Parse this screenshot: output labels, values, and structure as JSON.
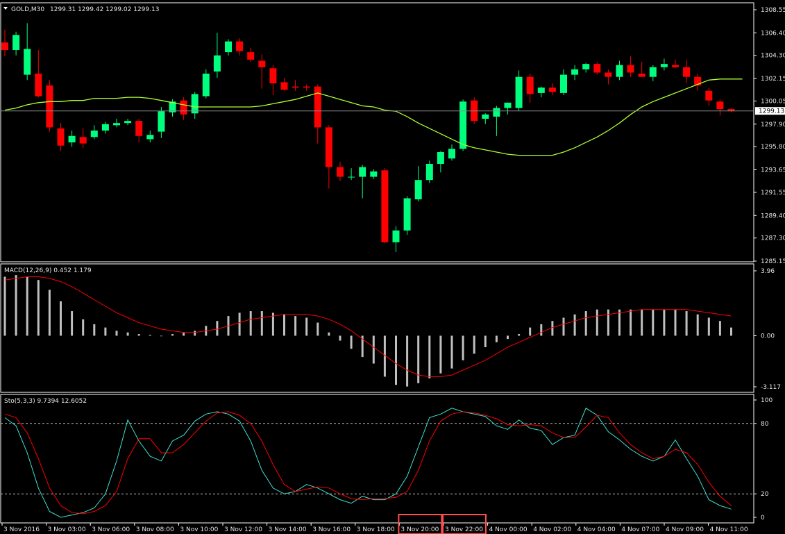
{
  "main_info": {
    "symbol": "GOLD,M30",
    "ohlc_text": "1299.31 1299.42 1299.02 1299.13",
    "current_price_tag": "1299.13"
  },
  "macd_info": {
    "label": "MACD(12,26,9) 0.452 1.179"
  },
  "stoch_info": {
    "label": "Sto(5,3,3) 9.7394 12.6052"
  },
  "colors": {
    "background": "#000000",
    "bull": "#00ff7f",
    "bear": "#ff0000",
    "ma": "#adff2f",
    "histogram": "#c0c0c0",
    "signal": "#ff0000",
    "stoch_main": "#40e0d0",
    "stoch_signal": "#ff0000",
    "highlight": "#ff4d4d",
    "axis": "#ffffff"
  },
  "chart_data": [
    {
      "type": "candlestick",
      "title": "GOLD,M30",
      "ylim": [
        1285.15,
        1308.55
      ],
      "y_ticks": [
        "1308.55",
        "1306.40",
        "1304.30",
        "1302.15",
        "1300.05",
        "1297.90",
        "1295.80",
        "1293.65",
        "1291.55",
        "1289.40",
        "1287.30",
        "1285.15"
      ],
      "current_price": 1299.13,
      "candles": [
        {
          "o": 1305.5,
          "h": 1306.7,
          "l": 1304.2,
          "c": 1304.8
        },
        {
          "o": 1304.8,
          "h": 1306.5,
          "l": 1304.3,
          "c": 1306.2
        },
        {
          "o": 1302.5,
          "h": 1307.3,
          "l": 1302.0,
          "c": 1304.9
        },
        {
          "o": 1302.6,
          "h": 1304.8,
          "l": 1300.4,
          "c": 1300.5
        },
        {
          "o": 1301.5,
          "h": 1302.0,
          "l": 1297.2,
          "c": 1297.6
        },
        {
          "o": 1297.5,
          "h": 1298.0,
          "l": 1295.4,
          "c": 1295.9
        },
        {
          "o": 1296.2,
          "h": 1297.3,
          "l": 1295.8,
          "c": 1296.8
        },
        {
          "o": 1296.7,
          "h": 1297.5,
          "l": 1295.7,
          "c": 1296.1
        },
        {
          "o": 1296.7,
          "h": 1297.8,
          "l": 1296.5,
          "c": 1297.3
        },
        {
          "o": 1297.3,
          "h": 1298.1,
          "l": 1297.0,
          "c": 1297.9
        },
        {
          "o": 1297.8,
          "h": 1298.4,
          "l": 1297.6,
          "c": 1298.0
        },
        {
          "o": 1298.0,
          "h": 1298.4,
          "l": 1297.8,
          "c": 1298.2
        },
        {
          "o": 1298.2,
          "h": 1298.4,
          "l": 1296.2,
          "c": 1296.8
        },
        {
          "o": 1296.5,
          "h": 1297.3,
          "l": 1296.2,
          "c": 1296.9
        },
        {
          "o": 1297.2,
          "h": 1299.5,
          "l": 1296.6,
          "c": 1299.1
        },
        {
          "o": 1299.0,
          "h": 1300.2,
          "l": 1298.6,
          "c": 1300.0
        },
        {
          "o": 1300.1,
          "h": 1300.4,
          "l": 1298.3,
          "c": 1298.8
        },
        {
          "o": 1298.9,
          "h": 1300.9,
          "l": 1298.4,
          "c": 1300.7
        },
        {
          "o": 1300.5,
          "h": 1303.0,
          "l": 1300.3,
          "c": 1302.6
        },
        {
          "o": 1302.8,
          "h": 1306.4,
          "l": 1302.2,
          "c": 1304.3
        },
        {
          "o": 1304.6,
          "h": 1305.8,
          "l": 1304.3,
          "c": 1305.6
        },
        {
          "o": 1305.6,
          "h": 1305.9,
          "l": 1304.3,
          "c": 1304.7
        },
        {
          "o": 1304.6,
          "h": 1305.0,
          "l": 1303.7,
          "c": 1303.9
        },
        {
          "o": 1303.8,
          "h": 1304.4,
          "l": 1301.2,
          "c": 1303.2
        },
        {
          "o": 1303.1,
          "h": 1303.4,
          "l": 1300.6,
          "c": 1301.7
        },
        {
          "o": 1301.8,
          "h": 1302.2,
          "l": 1301.0,
          "c": 1301.1
        },
        {
          "o": 1301.4,
          "h": 1302.0,
          "l": 1301.0,
          "c": 1301.3
        },
        {
          "o": 1301.4,
          "h": 1301.6,
          "l": 1301.0,
          "c": 1301.3
        },
        {
          "o": 1301.4,
          "h": 1301.6,
          "l": 1296.1,
          "c": 1297.6
        },
        {
          "o": 1297.6,
          "h": 1297.8,
          "l": 1291.9,
          "c": 1293.9
        },
        {
          "o": 1293.9,
          "h": 1294.4,
          "l": 1292.6,
          "c": 1293.0
        },
        {
          "o": 1293.0,
          "h": 1293.8,
          "l": 1292.7,
          "c": 1293.0
        },
        {
          "o": 1293.0,
          "h": 1294.1,
          "l": 1291.0,
          "c": 1293.9
        },
        {
          "o": 1293.0,
          "h": 1293.7,
          "l": 1292.8,
          "c": 1293.5
        },
        {
          "o": 1293.6,
          "h": 1293.8,
          "l": 1286.8,
          "c": 1286.9
        },
        {
          "o": 1286.9,
          "h": 1288.4,
          "l": 1286.0,
          "c": 1288.0
        },
        {
          "o": 1288.0,
          "h": 1291.2,
          "l": 1287.6,
          "c": 1291.0
        },
        {
          "o": 1290.9,
          "h": 1294.0,
          "l": 1290.7,
          "c": 1292.7
        },
        {
          "o": 1292.7,
          "h": 1294.5,
          "l": 1292.4,
          "c": 1294.2
        },
        {
          "o": 1294.2,
          "h": 1295.4,
          "l": 1293.4,
          "c": 1295.3
        },
        {
          "o": 1294.7,
          "h": 1296.0,
          "l": 1294.5,
          "c": 1295.6
        },
        {
          "o": 1295.6,
          "h": 1300.2,
          "l": 1295.4,
          "c": 1300.0
        },
        {
          "o": 1300.1,
          "h": 1300.4,
          "l": 1297.9,
          "c": 1298.2
        },
        {
          "o": 1298.4,
          "h": 1298.9,
          "l": 1297.9,
          "c": 1298.8
        },
        {
          "o": 1298.6,
          "h": 1299.6,
          "l": 1296.8,
          "c": 1299.4
        },
        {
          "o": 1299.4,
          "h": 1299.9,
          "l": 1298.8,
          "c": 1299.9
        },
        {
          "o": 1299.4,
          "h": 1302.9,
          "l": 1299.1,
          "c": 1302.3
        },
        {
          "o": 1302.3,
          "h": 1302.6,
          "l": 1299.9,
          "c": 1300.7
        },
        {
          "o": 1300.8,
          "h": 1301.4,
          "l": 1300.4,
          "c": 1301.3
        },
        {
          "o": 1301.3,
          "h": 1301.7,
          "l": 1300.6,
          "c": 1300.9
        },
        {
          "o": 1300.8,
          "h": 1303.0,
          "l": 1300.6,
          "c": 1302.5
        },
        {
          "o": 1302.5,
          "h": 1303.4,
          "l": 1302.0,
          "c": 1303.0
        },
        {
          "o": 1303.0,
          "h": 1303.6,
          "l": 1302.7,
          "c": 1303.5
        },
        {
          "o": 1303.5,
          "h": 1303.7,
          "l": 1302.5,
          "c": 1302.7
        },
        {
          "o": 1302.7,
          "h": 1303.0,
          "l": 1301.6,
          "c": 1302.3
        },
        {
          "o": 1302.3,
          "h": 1303.8,
          "l": 1302.0,
          "c": 1303.4
        },
        {
          "o": 1303.4,
          "h": 1304.2,
          "l": 1302.3,
          "c": 1302.7
        },
        {
          "o": 1302.6,
          "h": 1303.7,
          "l": 1302.3,
          "c": 1302.3
        },
        {
          "o": 1302.3,
          "h": 1303.4,
          "l": 1301.9,
          "c": 1303.2
        },
        {
          "o": 1303.2,
          "h": 1304.0,
          "l": 1302.9,
          "c": 1303.5
        },
        {
          "o": 1303.4,
          "h": 1303.9,
          "l": 1303.1,
          "c": 1303.2
        },
        {
          "o": 1303.2,
          "h": 1303.9,
          "l": 1301.7,
          "c": 1302.3
        },
        {
          "o": 1302.3,
          "h": 1302.6,
          "l": 1301.0,
          "c": 1301.5
        },
        {
          "o": 1301.0,
          "h": 1301.3,
          "l": 1299.6,
          "c": 1300.1
        },
        {
          "o": 1300.0,
          "h": 1300.2,
          "l": 1298.7,
          "c": 1299.3
        },
        {
          "o": 1299.3,
          "h": 1299.4,
          "l": 1299.0,
          "c": 1299.1
        }
      ],
      "moving_average": [
        1299.2,
        1299.4,
        1299.7,
        1299.9,
        1300.0,
        1300.0,
        1300.1,
        1300.1,
        1300.3,
        1300.3,
        1300.3,
        1300.4,
        1300.4,
        1300.3,
        1300.1,
        1299.9,
        1299.7,
        1299.5,
        1299.5,
        1299.5,
        1299.5,
        1299.5,
        1299.5,
        1299.6,
        1299.8,
        1300.0,
        1300.2,
        1300.5,
        1300.8,
        1300.5,
        1300.2,
        1299.9,
        1299.6,
        1299.5,
        1299.2,
        1299.1,
        1298.6,
        1298.0,
        1297.5,
        1297.0,
        1296.5,
        1296.0,
        1295.7,
        1295.5,
        1295.3,
        1295.1,
        1295.0,
        1295.0,
        1295.0,
        1295.0,
        1295.3,
        1295.7,
        1296.2,
        1296.7,
        1297.3,
        1298.0,
        1298.8,
        1299.5,
        1300.0,
        1300.4,
        1300.8,
        1301.2,
        1301.6,
        1302.0,
        1302.1,
        1302.1,
        1302.1
      ]
    },
    {
      "type": "bar",
      "title": "MACD(12,26,9)",
      "ylim": [
        -3.117,
        3.96
      ],
      "y_ticks": [
        "3.96",
        "0.00",
        "-3.117"
      ],
      "histogram": [
        3.6,
        3.7,
        3.6,
        3.4,
        2.8,
        2.1,
        1.5,
        1.0,
        0.7,
        0.5,
        0.3,
        0.2,
        0.1,
        0.05,
        0.0,
        0.1,
        0.2,
        0.3,
        0.6,
        0.9,
        1.2,
        1.4,
        1.5,
        1.5,
        1.4,
        1.3,
        1.2,
        1.1,
        0.8,
        0.2,
        -0.3,
        -0.8,
        -1.3,
        -1.7,
        -2.5,
        -3.0,
        -3.1,
        -2.9,
        -2.6,
        -2.3,
        -2.0,
        -1.5,
        -1.1,
        -0.7,
        -0.4,
        -0.2,
        0.1,
        0.5,
        0.7,
        0.9,
        1.1,
        1.3,
        1.5,
        1.6,
        1.6,
        1.6,
        1.6,
        1.6,
        1.6,
        1.6,
        1.6,
        1.5,
        1.3,
        1.1,
        0.9,
        0.5
      ],
      "signal": [
        3.4,
        3.5,
        3.6,
        3.6,
        3.5,
        3.3,
        3.0,
        2.6,
        2.2,
        1.8,
        1.4,
        1.1,
        0.8,
        0.6,
        0.4,
        0.3,
        0.2,
        0.2,
        0.3,
        0.4,
        0.6,
        0.8,
        1.0,
        1.1,
        1.2,
        1.3,
        1.3,
        1.3,
        1.2,
        1.0,
        0.7,
        0.3,
        -0.2,
        -0.7,
        -1.2,
        -1.7,
        -2.1,
        -2.4,
        -2.5,
        -2.5,
        -2.4,
        -2.1,
        -1.8,
        -1.5,
        -1.1,
        -0.7,
        -0.4,
        -0.1,
        0.2,
        0.5,
        0.7,
        0.9,
        1.1,
        1.2,
        1.3,
        1.4,
        1.5,
        1.6,
        1.6,
        1.6,
        1.6,
        1.6,
        1.5,
        1.4,
        1.3,
        1.2
      ]
    },
    {
      "type": "line",
      "title": "Sto(5,3,3)",
      "ylim": [
        0,
        100
      ],
      "y_ticks": [
        "100",
        "80",
        "20",
        "0"
      ],
      "levels": [
        80,
        20
      ],
      "series": [
        {
          "values": [
            85,
            78,
            55,
            25,
            5,
            0,
            2,
            4,
            8,
            20,
            48,
            83,
            65,
            52,
            48,
            65,
            70,
            82,
            88,
            90,
            88,
            82,
            65,
            40,
            25,
            20,
            22,
            28,
            25,
            20,
            15,
            12,
            18,
            15,
            15,
            20,
            35,
            60,
            85,
            88,
            93,
            90,
            88,
            86,
            78,
            75,
            83,
            76,
            74,
            62,
            68,
            70,
            93,
            87,
            73,
            66,
            58,
            52,
            48,
            52,
            66,
            50,
            35,
            15,
            10,
            7
          ]
        },
        {
          "values": [
            88,
            85,
            72,
            50,
            25,
            10,
            4,
            3,
            5,
            10,
            22,
            50,
            67,
            67,
            55,
            55,
            62,
            72,
            82,
            89,
            90,
            87,
            80,
            65,
            45,
            28,
            22,
            24,
            26,
            25,
            20,
            16,
            15,
            16,
            16,
            17,
            22,
            40,
            65,
            82,
            88,
            90,
            89,
            87,
            84,
            79,
            78,
            79,
            78,
            72,
            68,
            68,
            77,
            87,
            85,
            72,
            62,
            55,
            50,
            52,
            58,
            55,
            45,
            30,
            18,
            10
          ]
        }
      ]
    }
  ],
  "time_axis": [
    "3 Nov 2016",
    "3 Nov 03:00",
    "3 Nov 06:00",
    "3 Nov 08:00",
    "3 Nov 10:00",
    "3 Nov 12:00",
    "3 Nov 14:00",
    "3 Nov 16:00",
    "3 Nov 18:00",
    "3 Nov 20:00",
    "3 Nov 22:00",
    "4 Nov 00:00",
    "4 Nov 02:00",
    "4 Nov 04:00",
    "4 Nov 07:00",
    "4 Nov 09:00",
    "4 Nov 11:00"
  ],
  "highlighted_time_labels": [
    "3 Nov 20:00",
    "3 Nov 22:00"
  ]
}
